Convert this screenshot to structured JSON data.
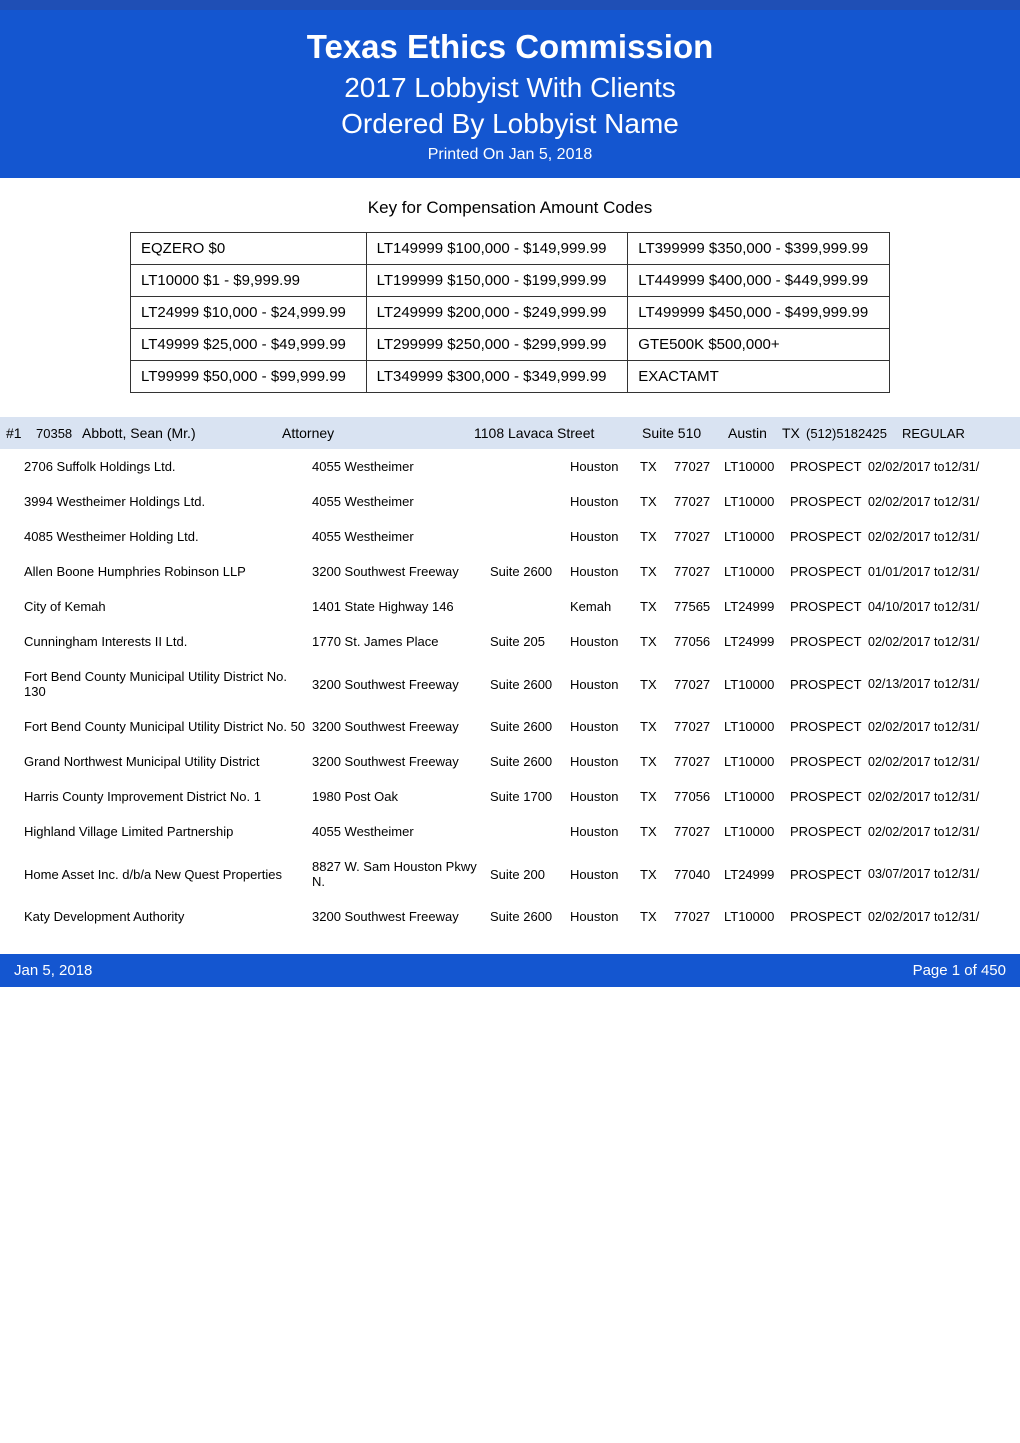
{
  "header": {
    "title": "Texas Ethics Commission",
    "subtitle1": "2017 Lobbyist With Clients",
    "subtitle2": "Ordered By Lobbyist Name",
    "printed": "Printed On   Jan 5, 2018",
    "banner_bg": "#1456d0",
    "banner_top_border": "#1f4fb5",
    "text_color": "#ffffff"
  },
  "key": {
    "heading": "Key for Compensation Amount Codes",
    "rows": [
      [
        "EQZERO  $0",
        "LT149999  $100,000 - $149,999.99",
        "LT399999  $350,000 - $399,999.99"
      ],
      [
        "LT10000  $1 - $9,999.99",
        "LT199999  $150,000 - $199,999.99",
        "LT449999  $400,000 - $449,999.99"
      ],
      [
        "LT24999  $10,000 - $24,999.99",
        "LT249999  $200,000 - $249,999.99",
        "LT499999  $450,000 - $499,999.99"
      ],
      [
        "LT49999  $25,000 - $49,999.99",
        "LT299999  $250,000 - $299,999.99",
        "GTE500K  $500,000+"
      ],
      [
        "LT99999  $50,000 - $99,999.99",
        "LT349999  $300,000 - $349,999.99",
        "EXACTAMT"
      ]
    ],
    "border_color": "#333333"
  },
  "lobbyist": {
    "row_bg": "#d9e3f2",
    "number": "#1",
    "id": "70358",
    "name": "Abbott, Sean (Mr.)",
    "occupation": "Attorney",
    "address": "1108 Lavaca Street",
    "suite": "Suite 510",
    "city": "Austin",
    "state": "TX",
    "phone": "(512)5182425",
    "type": "REGULAR"
  },
  "clients": [
    {
      "name": "2706 Suffolk Holdings Ltd.",
      "addr": "4055 Westheimer",
      "suite": "",
      "city": "Houston",
      "state": "TX",
      "zip": "77027",
      "comp": "LT10000",
      "status": "PROSPECT",
      "dates": "02/02/2017 to12/31/"
    },
    {
      "name": "3994 Westheimer Holdings Ltd.",
      "addr": "4055 Westheimer",
      "suite": "",
      "city": "Houston",
      "state": "TX",
      "zip": "77027",
      "comp": "LT10000",
      "status": "PROSPECT",
      "dates": "02/02/2017 to12/31/"
    },
    {
      "name": "4085 Westheimer Holding Ltd.",
      "addr": "4055 Westheimer",
      "suite": "",
      "city": "Houston",
      "state": "TX",
      "zip": "77027",
      "comp": "LT10000",
      "status": "PROSPECT",
      "dates": "02/02/2017 to12/31/"
    },
    {
      "name": "Allen Boone Humphries Robinson LLP",
      "addr": "3200 Southwest Freeway",
      "suite": "Suite 2600",
      "city": "Houston",
      "state": "TX",
      "zip": "77027",
      "comp": "LT10000",
      "status": "PROSPECT",
      "dates": "01/01/2017 to12/31/"
    },
    {
      "name": "City of Kemah",
      "addr": "1401 State Highway 146",
      "suite": "",
      "city": "Kemah",
      "state": "TX",
      "zip": "77565",
      "comp": "LT24999",
      "status": "PROSPECT",
      "dates": "04/10/2017 to12/31/"
    },
    {
      "name": "Cunningham Interests II  Ltd.",
      "addr": "1770 St. James Place",
      "suite": "Suite 205",
      "city": "Houston",
      "state": "TX",
      "zip": "77056",
      "comp": "LT24999",
      "status": "PROSPECT",
      "dates": "02/02/2017 to12/31/"
    },
    {
      "name": "Fort Bend County Municipal Utility District No. 130",
      "addr": "3200 Southwest Freeway",
      "suite": "Suite 2600",
      "city": "Houston",
      "state": "TX",
      "zip": "77027",
      "comp": "LT10000",
      "status": "PROSPECT",
      "dates": "02/13/2017 to12/31/"
    },
    {
      "name": "Fort Bend County Municipal Utility District No. 50",
      "addr": "3200 Southwest Freeway",
      "suite": "Suite 2600",
      "city": "Houston",
      "state": "TX",
      "zip": "77027",
      "comp": "LT10000",
      "status": "PROSPECT",
      "dates": "02/02/2017 to12/31/"
    },
    {
      "name": "Grand Northwest Municipal Utility District",
      "addr": "3200 Southwest Freeway",
      "suite": "Suite 2600",
      "city": "Houston",
      "state": "TX",
      "zip": "77027",
      "comp": "LT10000",
      "status": "PROSPECT",
      "dates": "02/02/2017 to12/31/"
    },
    {
      "name": "Harris County Improvement District No. 1",
      "addr": "1980 Post Oak",
      "suite": "Suite 1700",
      "city": "Houston",
      "state": "TX",
      "zip": "77056",
      "comp": "LT10000",
      "status": "PROSPECT",
      "dates": "02/02/2017 to12/31/"
    },
    {
      "name": "Highland Village Limited Partnership",
      "addr": "4055 Westheimer",
      "suite": "",
      "city": "Houston",
      "state": "TX",
      "zip": "77027",
      "comp": "LT10000",
      "status": "PROSPECT",
      "dates": "02/02/2017 to12/31/"
    },
    {
      "name": "Home Asset  Inc. d/b/a New Quest Properties",
      "addr": "8827 W. Sam Houston Pkwy N.",
      "suite": "Suite 200",
      "city": "Houston",
      "state": "TX",
      "zip": "77040",
      "comp": "LT24999",
      "status": "PROSPECT",
      "dates": "03/07/2017 to12/31/"
    },
    {
      "name": "Katy Development Authority",
      "addr": "3200 Southwest Freeway",
      "suite": "Suite 2600",
      "city": "Houston",
      "state": "TX",
      "zip": "77027",
      "comp": "LT10000",
      "status": "PROSPECT",
      "dates": "02/02/2017 to12/31/"
    }
  ],
  "footer": {
    "left": "Jan 5, 2018",
    "right": "Page 1 of 450"
  }
}
